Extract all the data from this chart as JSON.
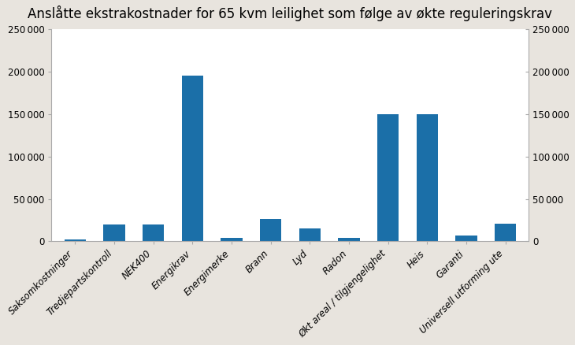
{
  "title": "Anslåtte ekstrakostnader for 65 kvm leilighet som følge av økte reguleringskrav",
  "categories": [
    "Saksomkostninger",
    "Tredjepartskontroll",
    "NEK400",
    "Energikrav",
    "Energimerke",
    "Brann",
    "Lyd",
    "Radon",
    "Økt areal / tilgjengelighet",
    "Heis",
    "Garanti",
    "Universell utforming ute"
  ],
  "values": [
    2000,
    20000,
    20000,
    195000,
    4000,
    26000,
    15000,
    4000,
    150000,
    150000,
    7000,
    21000
  ],
  "bar_color": "#1b6fa8",
  "ylim": [
    0,
    250000
  ],
  "yticks": [
    0,
    50000,
    100000,
    150000,
    200000,
    250000
  ],
  "figure_bg": "#e8e4de",
  "plot_bg": "#ffffff",
  "title_fontsize": 12,
  "tick_fontsize": 8.5
}
